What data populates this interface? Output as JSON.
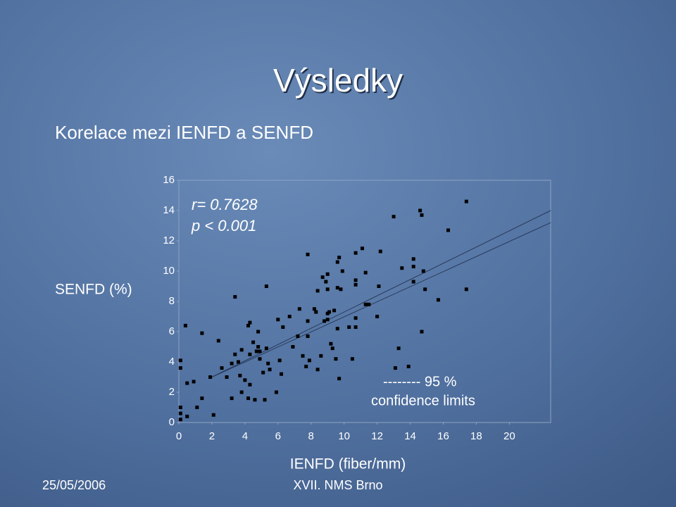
{
  "slide": {
    "title": "Výsledky",
    "subtitle": "Korelace mezi IENFD a SENFD",
    "footer_left": "25/05/2006",
    "footer_center": "XVII. NMS Brno"
  },
  "chart_data": {
    "type": "scatter",
    "ylabel": "SENFD (%)",
    "xlabel": "IENFD (fiber/mm)",
    "annotations": [
      "r= 0.7628",
      "p < 0.001"
    ],
    "legend_text": [
      "-------- 95 %",
      "confidence limits"
    ],
    "xlim": [
      0,
      22.5
    ],
    "ylim": [
      0,
      16
    ],
    "xticks": [
      0,
      2,
      4,
      6,
      8,
      10,
      12,
      14,
      16,
      18,
      20
    ],
    "yticks": [
      0,
      2,
      4,
      6,
      8,
      10,
      12,
      14,
      16
    ],
    "color": "#000000",
    "fit_lines": [
      {
        "x": [
          1.8,
          22.5
        ],
        "y": [
          2.9,
          14.0
        ]
      },
      {
        "x": [
          1.8,
          22.5
        ],
        "y": [
          2.9,
          13.2
        ]
      }
    ],
    "x": [
      0.1,
      0.1,
      0.1,
      0.1,
      0.1,
      0.5,
      0.5,
      0.9,
      0.4,
      1.1,
      1.4,
      1.4,
      1.9,
      2.1,
      2.4,
      2.6,
      2.9,
      3.2,
      3.2,
      3.4,
      3.4,
      3.6,
      3.7,
      3.8,
      3.8,
      4.0,
      4.2,
      4.2,
      4.3,
      4.3,
      4.3,
      4.5,
      4.6,
      4.7,
      4.8,
      4.8,
      4.9,
      4.9,
      5.1,
      5.2,
      5.3,
      5.3,
      5.4,
      5.5,
      5.9,
      6.0,
      6.1,
      6.2,
      6.3,
      6.7,
      6.9,
      7.2,
      7.3,
      7.5,
      7.7,
      7.8,
      7.8,
      7.8,
      7.9,
      8.2,
      8.3,
      8.4,
      8.4,
      8.6,
      8.7,
      8.8,
      8.9,
      9.0,
      9.0,
      9.0,
      9.0,
      9.1,
      9.2,
      9.3,
      9.4,
      9.5,
      9.6,
      9.6,
      9.6,
      9.7,
      9.7,
      9.8,
      9.9,
      10.3,
      10.5,
      10.7,
      10.7,
      10.7,
      10.7,
      10.7,
      11.1,
      11.3,
      11.3,
      11.5,
      12.0,
      12.1,
      12.2,
      13.0,
      13.3,
      13.1,
      13.5,
      13.9,
      14.2,
      14.2,
      14.2,
      14.6,
      14.7,
      14.8,
      14.9,
      14.7,
      15.7,
      16.3,
      17.4,
      17.4
    ],
    "y": [
      4.1,
      3.6,
      1.0,
      0.6,
      0.2,
      0.4,
      2.6,
      2.7,
      6.4,
      1.0,
      5.9,
      1.6,
      3.0,
      0.5,
      5.4,
      3.6,
      3.0,
      3.9,
      1.6,
      8.3,
      4.5,
      4.0,
      3.1,
      2.0,
      4.8,
      2.8,
      6.4,
      1.6,
      4.5,
      6.6,
      2.5,
      5.3,
      1.5,
      4.7,
      6.0,
      5.0,
      4.2,
      4.7,
      3.3,
      1.5,
      9.0,
      4.9,
      3.9,
      3.5,
      2.0,
      6.8,
      4.1,
      3.2,
      6.3,
      7.0,
      5.0,
      5.7,
      7.5,
      4.4,
      3.7,
      11.1,
      5.7,
      6.7,
      4.1,
      7.5,
      7.3,
      8.7,
      3.5,
      4.4,
      9.6,
      6.7,
      9.3,
      7.2,
      9.8,
      8.8,
      6.8,
      7.3,
      5.2,
      4.9,
      7.4,
      4.2,
      10.6,
      6.2,
      8.9,
      10.9,
      2.9,
      8.8,
      10.0,
      6.3,
      4.2,
      9.1,
      11.2,
      9.4,
      6.9,
      6.3,
      11.5,
      9.9,
      7.8,
      7.8,
      7.0,
      9.0,
      11.3,
      13.6,
      4.9,
      3.6,
      10.2,
      3.7,
      10.8,
      10.3,
      9.3,
      14.0,
      13.7,
      10.0,
      8.8,
      6.0,
      8.1,
      12.7,
      14.6,
      8.8
    ]
  }
}
